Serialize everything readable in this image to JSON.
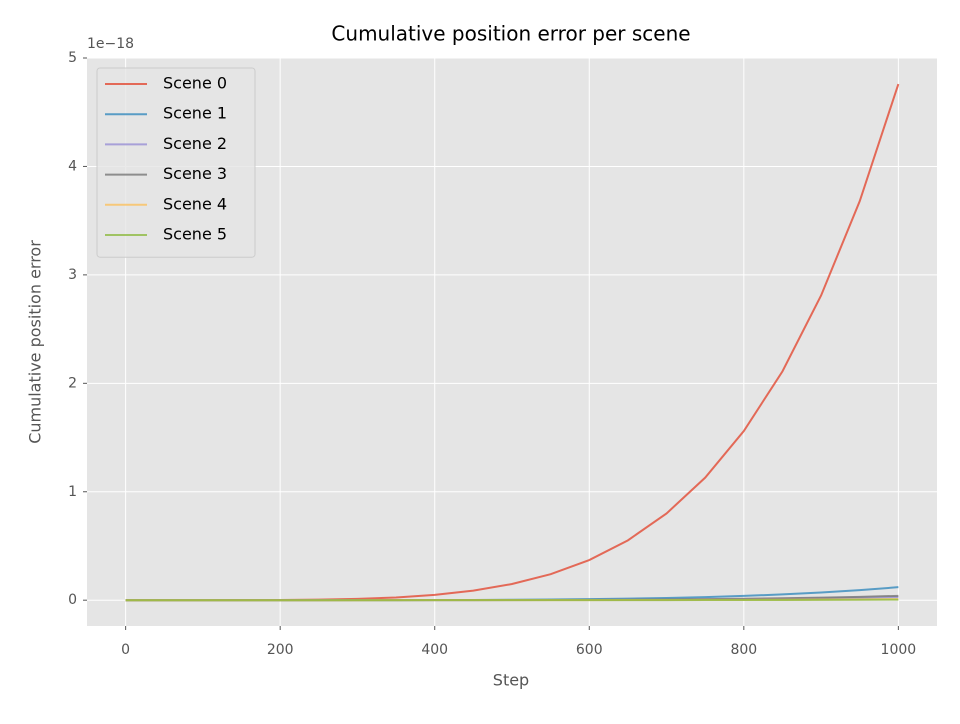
{
  "chart_data": {
    "type": "line",
    "title": "Cumulative position error per scene",
    "x_label": "Step",
    "y_label": "Cumulative position error",
    "y_offset_label": "1e−18",
    "x": [
      0,
      50,
      100,
      150,
      200,
      250,
      300,
      350,
      400,
      450,
      500,
      550,
      600,
      650,
      700,
      750,
      800,
      850,
      900,
      950,
      1000
    ],
    "series": [
      {
        "name": "Scene 0",
        "color": "#E24A33",
        "values": [
          0,
          1.5e-06,
          5e-05,
          0.00036,
          0.0015,
          0.0047,
          0.0116,
          0.025,
          0.0487,
          0.0878,
          0.149,
          0.24,
          0.37,
          0.552,
          0.8,
          1.13,
          1.56,
          2.11,
          2.81,
          3.68,
          4.76
        ]
      },
      {
        "name": "Scene 1",
        "color": "#348ABD",
        "values": [
          0,
          0,
          0,
          0,
          0,
          0.0001,
          0.0003,
          0.0006,
          0.0012,
          0.0022,
          0.0038,
          0.006,
          0.0093,
          0.0139,
          0.0202,
          0.0285,
          0.0393,
          0.0532,
          0.0709,
          0.0929,
          0.12
        ]
      },
      {
        "name": "Scene 2",
        "color": "#988ED5",
        "values": [
          0,
          0,
          0,
          0,
          0,
          0,
          0.0001,
          0.0002,
          0.0003,
          0.0006,
          0.0009,
          0.0015,
          0.0023,
          0.0035,
          0.005,
          0.0071,
          0.0098,
          0.0133,
          0.0177,
          0.0232,
          0.03
        ]
      },
      {
        "name": "Scene 3",
        "color": "#777777",
        "values": [
          0,
          0,
          0,
          0,
          0,
          0,
          0.0001,
          0.0002,
          0.0004,
          0.0007,
          0.0013,
          0.002,
          0.0031,
          0.0046,
          0.0067,
          0.0095,
          0.0131,
          0.0177,
          0.0236,
          0.031,
          0.04
        ]
      },
      {
        "name": "Scene 4",
        "color": "#FBC15E",
        "values": [
          0,
          0,
          0,
          0,
          0,
          0,
          0,
          0.0001,
          0.0001,
          0.0002,
          0.0003,
          0.0005,
          0.0008,
          0.0012,
          0.0017,
          0.0024,
          0.0033,
          0.0044,
          0.0059,
          0.0077,
          0.01
        ]
      },
      {
        "name": "Scene 5",
        "color": "#8EBA42",
        "values": [
          0,
          0,
          0,
          0,
          0,
          0,
          0,
          0,
          0.0001,
          0.0001,
          0.0002,
          0.0003,
          0.0004,
          0.0006,
          0.0008,
          0.0012,
          0.0016,
          0.0022,
          0.003,
          0.0039,
          0.005
        ]
      }
    ],
    "xlim": [
      -50,
      1050
    ],
    "ylim": [
      -0.238,
      5
    ],
    "xticks": [
      0,
      200,
      400,
      600,
      800,
      1000
    ],
    "yticks": [
      0,
      1,
      2,
      3,
      4,
      5
    ],
    "grid": true,
    "legend": "upper left"
  }
}
